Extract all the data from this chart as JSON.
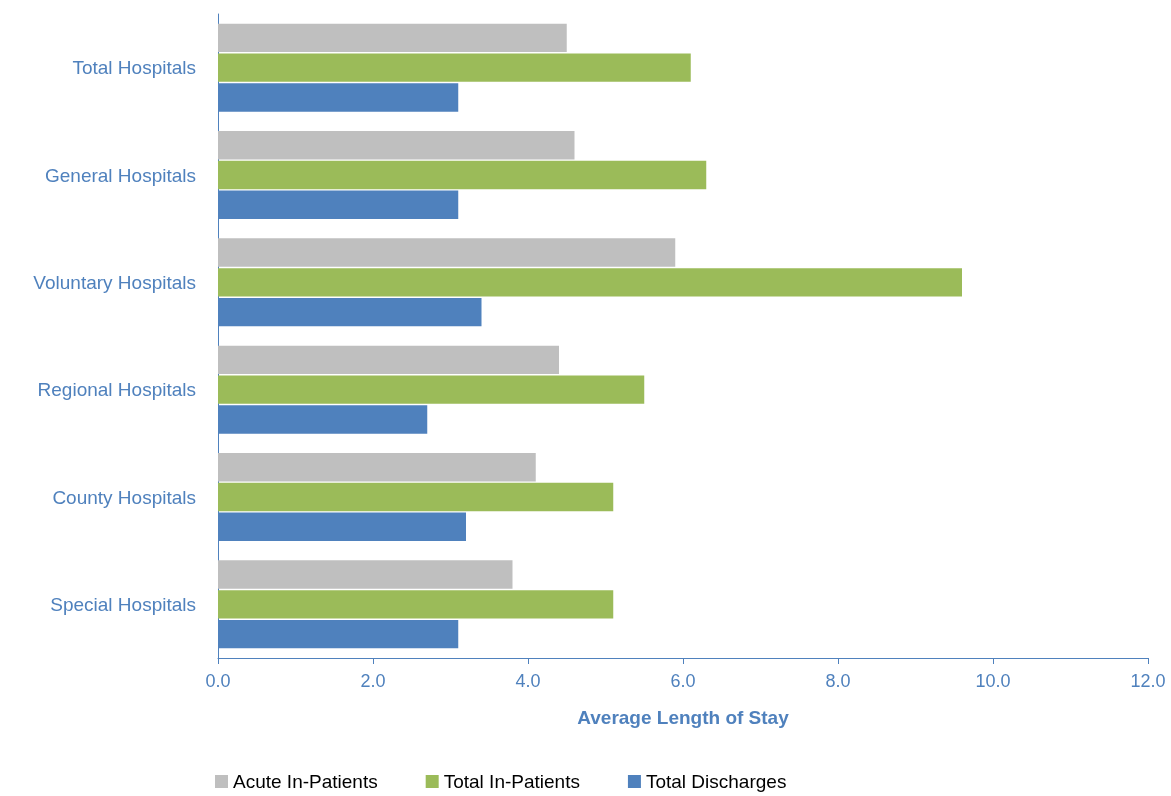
{
  "chart_data": {
    "type": "bar",
    "orientation": "horizontal",
    "xlabel": "Average Length of Stay",
    "categories": [
      "Total Hospitals",
      "General Hospitals",
      "Voluntary Hospitals",
      "Regional Hospitals",
      "County Hospitals",
      "Special Hospitals"
    ],
    "series": [
      {
        "name": "Acute In-Patients",
        "color": "#bfbfbf",
        "values": [
          4.5,
          4.6,
          5.9,
          4.4,
          4.1,
          3.8
        ]
      },
      {
        "name": "Total In-Patients",
        "color": "#9bbb59",
        "values": [
          6.1,
          6.3,
          9.6,
          5.5,
          5.1,
          5.1
        ]
      },
      {
        "name": "Total Discharges",
        "color": "#4f81bd",
        "values": [
          3.1,
          3.1,
          3.4,
          2.7,
          3.2,
          3.1
        ]
      }
    ],
    "xlim": [
      0,
      12
    ],
    "xticks": [
      {
        "value": 0,
        "label": "0.0"
      },
      {
        "value": 2,
        "label": "2.0"
      },
      {
        "value": 4,
        "label": "4.0"
      },
      {
        "value": 6,
        "label": "6.0"
      },
      {
        "value": 8,
        "label": "8.0"
      },
      {
        "value": 10,
        "label": "10.0"
      },
      {
        "value": 12,
        "label": "12.0"
      }
    ],
    "grid": false,
    "legend": "bottom"
  }
}
